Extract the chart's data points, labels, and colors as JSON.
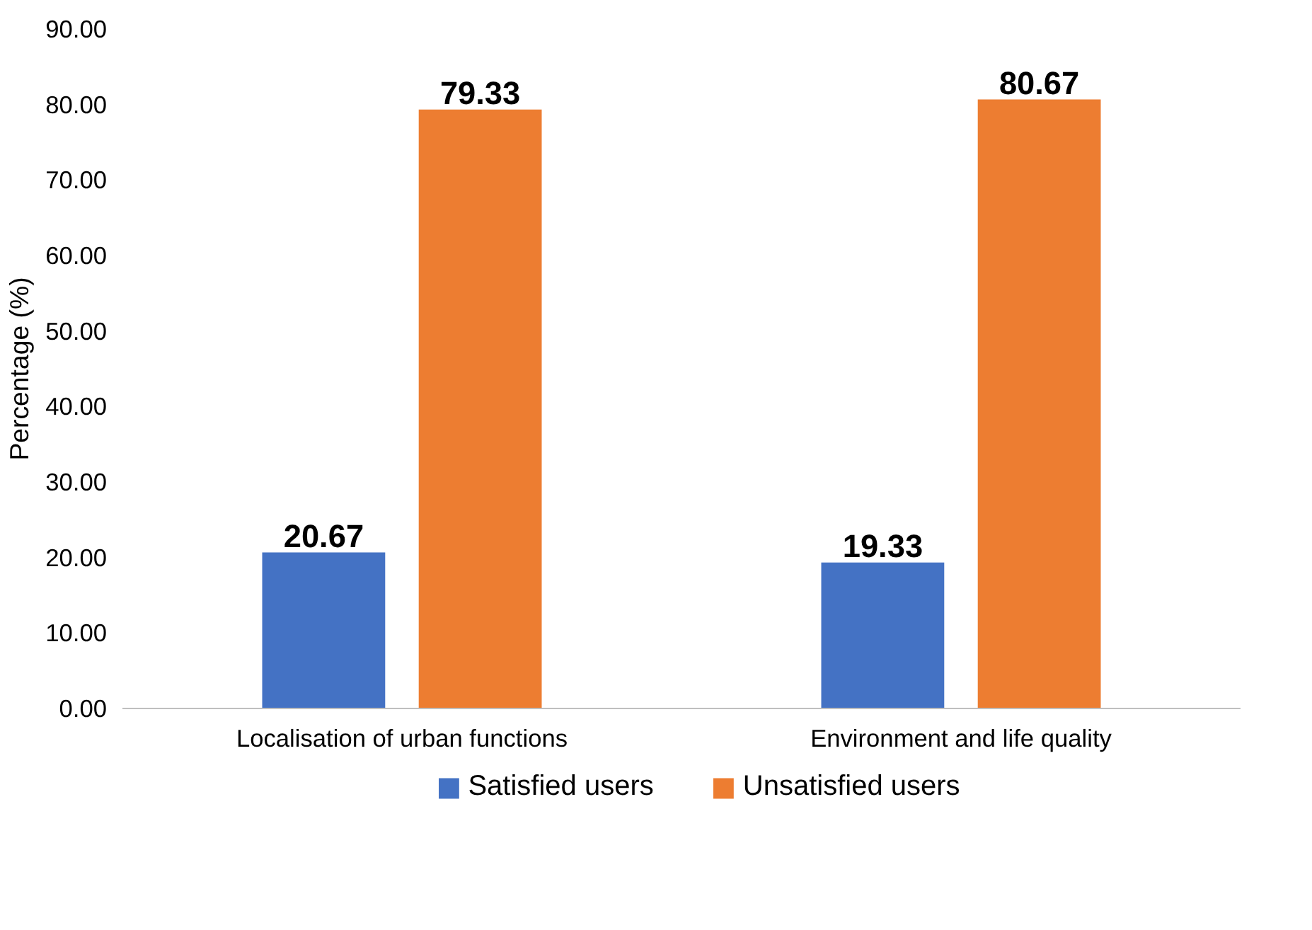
{
  "chart_data": {
    "type": "bar",
    "ylabel": "Percentage (%)",
    "categories": [
      "Localisation of urban functions",
      "Environment and life quality"
    ],
    "series": [
      {
        "name": "Satisfied users",
        "color": "#4472c4",
        "values": [
          20.67,
          19.33
        ]
      },
      {
        "name": "Unsatisfied users",
        "color": "#ed7d31",
        "values": [
          79.33,
          80.67
        ]
      }
    ],
    "ylim": [
      0,
      90
    ],
    "yticks": [
      {
        "value": 0,
        "label": "0.00"
      },
      {
        "value": 10,
        "label": "10.00"
      },
      {
        "value": 20,
        "label": "20.00"
      },
      {
        "value": 30,
        "label": "30.00"
      },
      {
        "value": 40,
        "label": "40.00"
      },
      {
        "value": 50,
        "label": "50.00"
      },
      {
        "value": 60,
        "label": "60.00"
      },
      {
        "value": 70,
        "label": "70.00"
      },
      {
        "value": 80,
        "label": "80.00"
      },
      {
        "value": 90,
        "label": "90.00"
      }
    ],
    "data_labels": true,
    "legend": "bottom",
    "grid": false
  }
}
